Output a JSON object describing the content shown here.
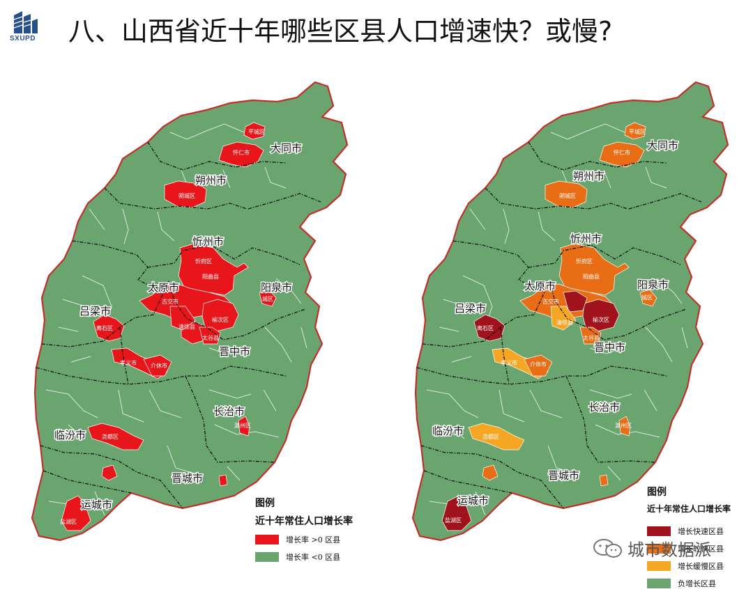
{
  "header": {
    "logo_text": "SXUPD",
    "title": "八、山西省近十年哪些区县人口增速快？或慢?"
  },
  "colors": {
    "green": "#6aa56f",
    "red": "#e8161a",
    "dark_red": "#a0121c",
    "orange": "#e86d14",
    "yellow": "#f5a623",
    "border_red": "#c0302a"
  },
  "left_map": {
    "city_labels": [
      "大同市",
      "朔州市",
      "忻州市",
      "太原市",
      "阳泉市",
      "吕梁市",
      "晋中市",
      "长治市",
      "临汾市",
      "晋城市",
      "运城市"
    ],
    "district_labels": [
      "平城区",
      "怀仁市",
      "朔城区",
      "忻府区",
      "阳曲县",
      "古交市",
      "清徐县",
      "榆次区",
      "太谷县",
      "离石区",
      "孝义市",
      "介休市",
      "尧都区",
      "潞州区",
      "城区",
      "盐湖区"
    ],
    "legend": {
      "title": "图例",
      "subtitle": "近十年常住人口增长率",
      "items": [
        {
          "label": "增长率 >0 区县",
          "color": "#e8161a"
        },
        {
          "label": "增长率 <0 区县",
          "color": "#6aa56f"
        }
      ]
    }
  },
  "right_map": {
    "city_labels": [
      "大同市",
      "朔州市",
      "忻州市",
      "太原市",
      "阳泉市",
      "吕梁市",
      "晋中市",
      "长治市",
      "临汾市",
      "晋城市",
      "运城市"
    ],
    "district_labels": [
      "平城区",
      "怀仁市",
      "朔城区",
      "忻府区",
      "阳曲县",
      "古交市",
      "清徐县",
      "榆次区",
      "太谷县",
      "离石区",
      "孝义市",
      "介休市",
      "尧都区",
      "潞州区",
      "城区",
      "盐湖区"
    ],
    "legend": {
      "title": "图例",
      "subtitle": "近十年常住人口增长率",
      "items": [
        {
          "label": "增长快速区县",
          "color": "#a0121c"
        },
        {
          "label": "增长较快区县",
          "color": "#e86d14"
        },
        {
          "label": "增长缓慢区县",
          "color": "#f5a623"
        },
        {
          "label": "负增长区县",
          "color": "#6aa56f"
        }
      ]
    }
  },
  "watermark": "城市数据派"
}
